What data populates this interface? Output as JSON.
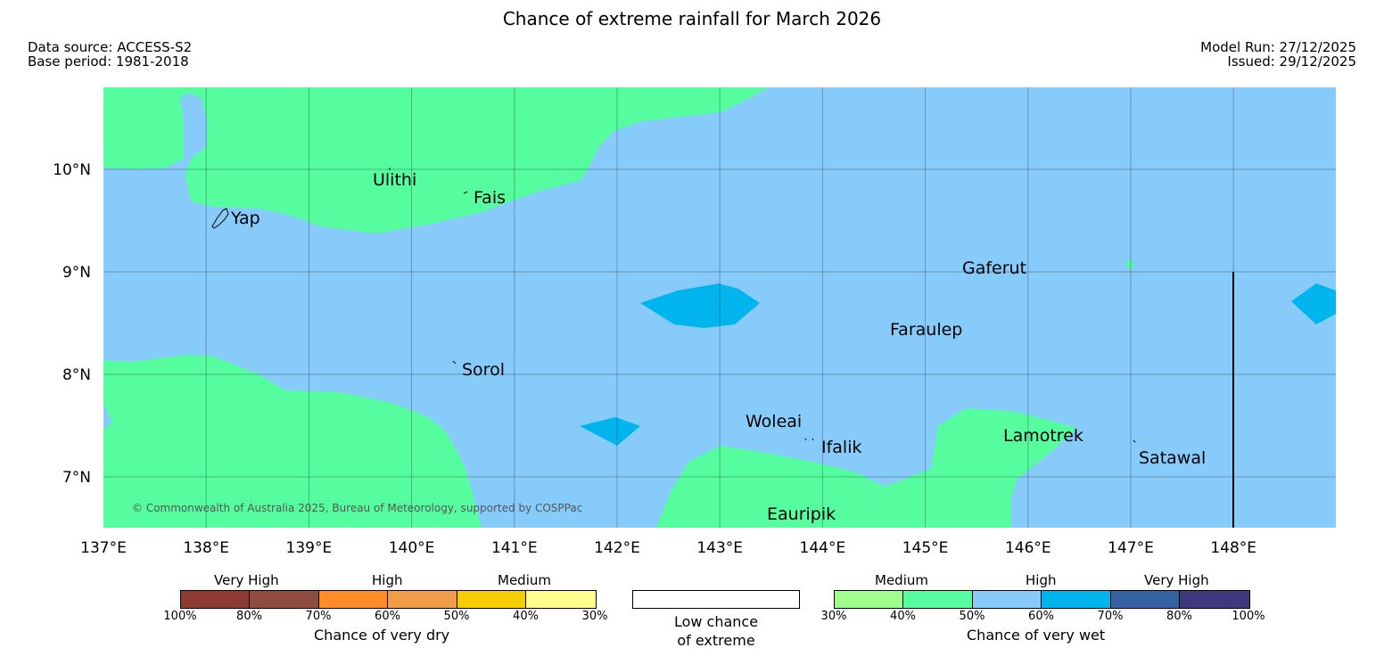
{
  "title": "Chance of extreme rainfall for March 2026",
  "meta": {
    "data_source": "Data source: ACCESS-S2",
    "base_period": "Base period: 1981-2018",
    "model_run": "Model Run: 27/12/2025",
    "issued": "Issued: 29/12/2025"
  },
  "map": {
    "copyright": "© Commonwealth of Australia 2025, Bureau of Meteorology, supported by COSPPac",
    "x_ticks": [
      "137°E",
      "138°E",
      "139°E",
      "140°E",
      "141°E",
      "142°E",
      "143°E",
      "144°E",
      "145°E",
      "146°E",
      "147°E",
      "148°E"
    ],
    "y_ticks": [
      "10°N",
      "9°N",
      "8°N",
      "7°N"
    ],
    "places": {
      "ulithi": "Ulithi",
      "fais": "Fais",
      "yap": "Yap",
      "gaferut": "Gaferut",
      "faraulep": "Faraulep",
      "sorol": "Sorol",
      "woleai": "Woleai",
      "ifalik": "Ifalik",
      "lamotrek": "Lamotrek",
      "satawal": "Satawal",
      "eauripik": "Eauripik"
    },
    "colors": {
      "ocean_60": "#87cbfb",
      "land_40": "#55fd9f",
      "wet_70": "#00b4ee"
    }
  },
  "legend": {
    "dry": {
      "categories": [
        "Very High",
        "High",
        "Medium"
      ],
      "ticks": [
        "100%",
        "80%",
        "70%",
        "60%",
        "50%",
        "40%",
        "30%"
      ],
      "colors": [
        "#8e3c31",
        "#8f4d3e",
        "#ff8c26",
        "#f09c49",
        "#f5cd00",
        "#fefe8c"
      ],
      "label": "Chance of very dry"
    },
    "neutral": {
      "label_line1": "Low chance",
      "label_line2": "of extreme"
    },
    "wet": {
      "categories": [
        "Medium",
        "High",
        "Very High"
      ],
      "ticks": [
        "30%",
        "40%",
        "50%",
        "60%",
        "70%",
        "80%",
        "100%"
      ],
      "colors": [
        "#9ffe8e",
        "#55fd9f",
        "#87cbfb",
        "#00b4ee",
        "#3562a0",
        "#3d3a7d"
      ],
      "label": "Chance of very wet"
    }
  }
}
